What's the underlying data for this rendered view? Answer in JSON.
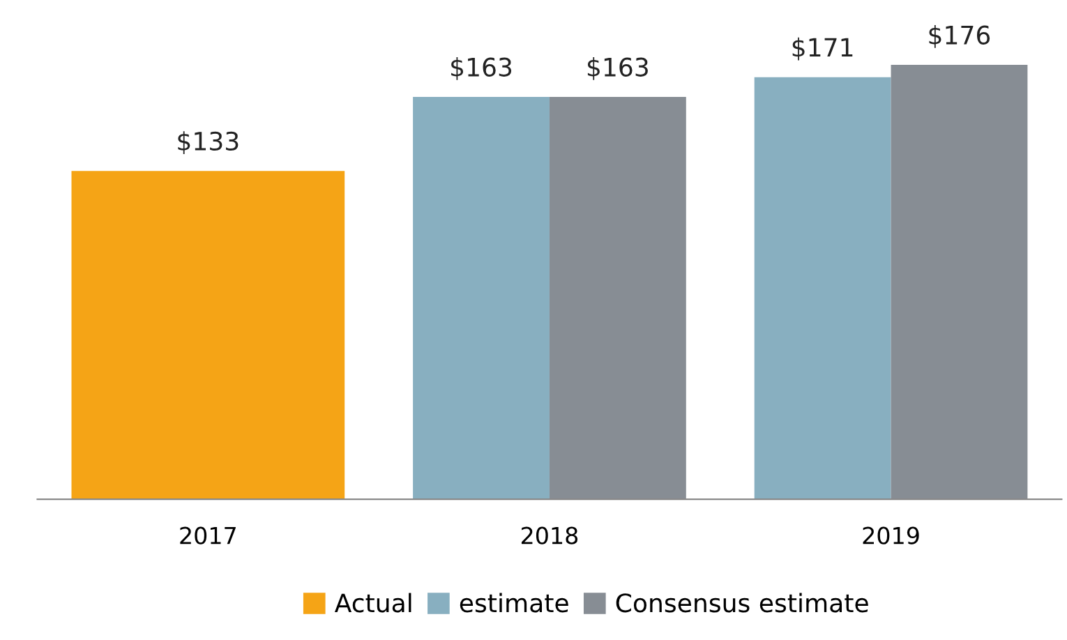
{
  "chart_data": {
    "type": "bar",
    "categories": [
      "2017",
      "2018",
      "2019"
    ],
    "series": [
      {
        "name": "Actual",
        "color": "#f5a416",
        "values": [
          133,
          null,
          null
        ],
        "value_labels": [
          "$133",
          null,
          null
        ]
      },
      {
        "name": "estimate",
        "color": "#88afc0",
        "values": [
          null,
          163,
          171
        ],
        "value_labels": [
          null,
          "$163",
          "$171"
        ]
      },
      {
        "name": "Consensus estimate",
        "color": "#878d94",
        "values": [
          null,
          163,
          176
        ],
        "value_labels": [
          null,
          "$163",
          "$176"
        ]
      }
    ],
    "tick_labels": "x",
    "grid": false,
    "legend": "bottom"
  }
}
